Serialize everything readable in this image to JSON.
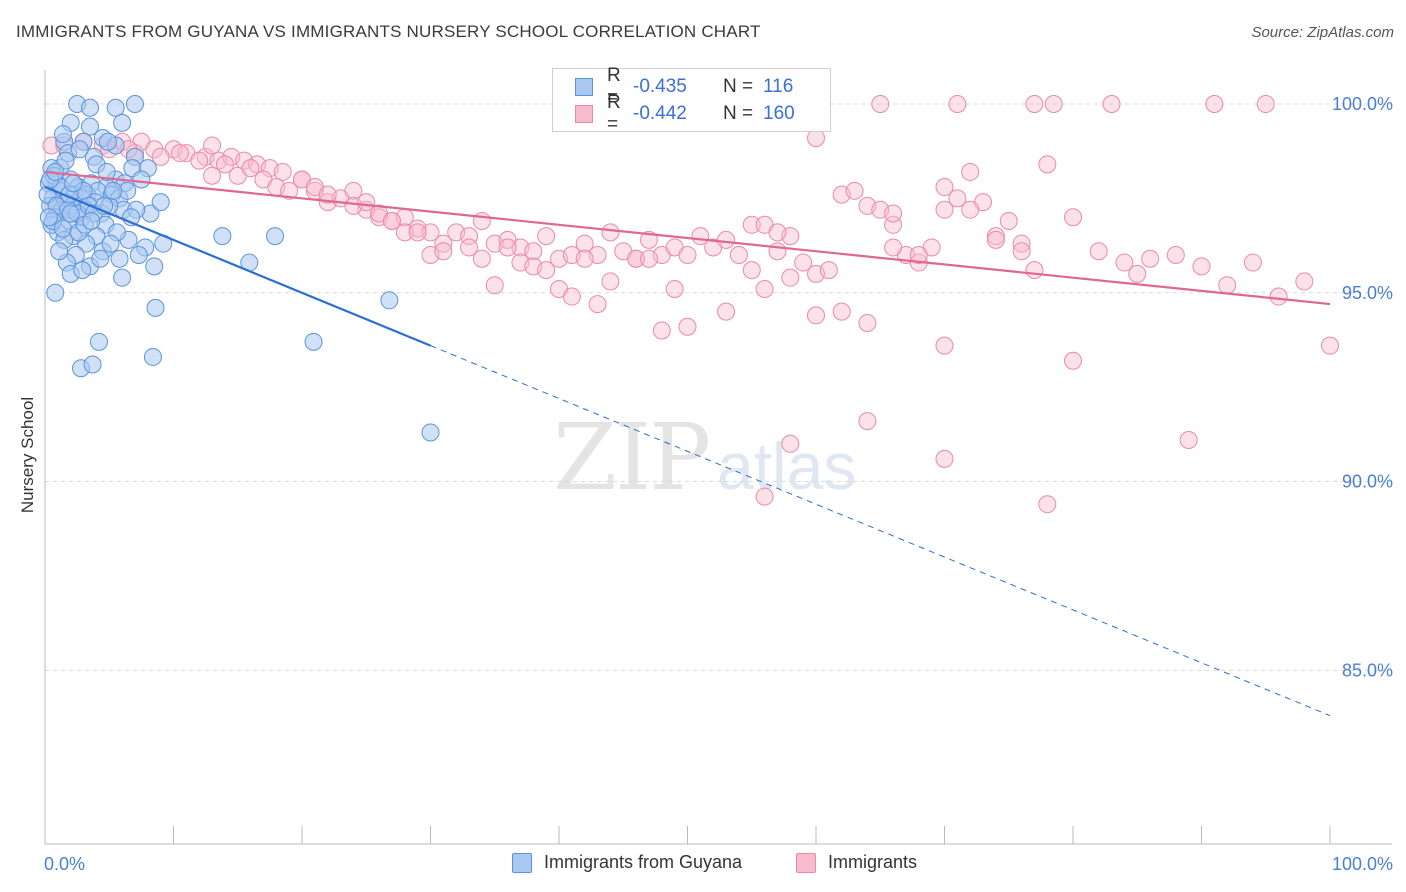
{
  "title": "IMMIGRANTS FROM GUYANA VS IMMIGRANTS NURSERY SCHOOL CORRELATION CHART",
  "source": "Source: ZipAtlas.com",
  "watermark": {
    "zip": "ZIP",
    "atlas": "atlas"
  },
  "legend": {
    "row1": {
      "r_label": "R =",
      "r_value": "-0.435",
      "n_label": "N =",
      "n_value": "116"
    },
    "row2": {
      "r_label": "R =",
      "r_value": "-0.442",
      "n_label": "N =",
      "n_value": "160"
    }
  },
  "bottom_legend": {
    "series1": "Immigrants from Guyana",
    "series2": "Immigrants"
  },
  "colors": {
    "blue_fill": "#a9c9f0",
    "blue_stroke": "#5b93dc",
    "blue_line": "#2a6fd1",
    "pink_fill": "#f6bccd",
    "pink_stroke": "#eb8aa8",
    "pink_line": "#e06890",
    "axis_label": "#4a7fd4",
    "grid": "#d9d9d9"
  },
  "chart_data": {
    "type": "scatter",
    "title": "IMMIGRANTS FROM GUYANA VS IMMIGRANTS NURSERY SCHOOL CORRELATION CHART",
    "xlabel": "",
    "ylabel": "Nursery School",
    "xlim": [
      0,
      100
    ],
    "ylim": [
      80.4,
      100.9
    ],
    "x_tick_labels": {
      "left": "0.0%",
      "right": "100.0%"
    },
    "y_ticks": [
      {
        "value": 100,
        "label": "100.0%"
      },
      {
        "value": 95,
        "label": "95.0%"
      },
      {
        "value": 90,
        "label": "90.0%"
      },
      {
        "value": 85,
        "label": "85.0%"
      }
    ],
    "series": [
      {
        "name": "Immigrants from Guyana",
        "r": -0.435,
        "n": 116,
        "trend": {
          "x0": 0,
          "y0": 97.8,
          "x1": 30,
          "y1": 93.6,
          "dash_to_x": 100,
          "dash_to_y": 83.8
        },
        "points": [
          [
            2.5,
            100
          ],
          [
            3.5,
            99.9
          ],
          [
            5.5,
            99.9
          ],
          [
            2,
            99.5
          ],
          [
            3.5,
            99.4
          ],
          [
            6,
            99.5
          ],
          [
            1.5,
            99.0
          ],
          [
            3,
            99.0
          ],
          [
            4.5,
            99.1
          ],
          [
            5.5,
            98.9
          ],
          [
            1.8,
            98.7
          ],
          [
            3.8,
            98.6
          ],
          [
            7,
            98.6
          ],
          [
            1.2,
            98.3
          ],
          [
            0.5,
            98.3
          ],
          [
            4,
            98.4
          ],
          [
            6.8,
            98.3
          ],
          [
            8,
            98.3
          ],
          [
            2,
            98.0
          ],
          [
            5.5,
            98.0
          ],
          [
            0.3,
            97.9
          ],
          [
            0.9,
            97.9
          ],
          [
            2.6,
            97.8
          ],
          [
            3.6,
            97.9
          ],
          [
            4.8,
            97.8
          ],
          [
            6.2,
            97.9
          ],
          [
            7.5,
            98.0
          ],
          [
            1.1,
            97.7
          ],
          [
            2.3,
            97.6
          ],
          [
            3.3,
            97.6
          ],
          [
            4.1,
            97.7
          ],
          [
            5.2,
            97.6
          ],
          [
            0.6,
            97.5
          ],
          [
            1.6,
            97.4
          ],
          [
            2.8,
            97.5
          ],
          [
            3.9,
            97.4
          ],
          [
            5.8,
            97.5
          ],
          [
            0.4,
            97.3
          ],
          [
            1.3,
            97.2
          ],
          [
            2.1,
            97.3
          ],
          [
            3.1,
            97.2
          ],
          [
            4.4,
            97.1
          ],
          [
            6.1,
            97.2
          ],
          [
            8.2,
            97.1
          ],
          [
            0.8,
            97.0
          ],
          [
            1.9,
            96.9
          ],
          [
            2.9,
            97.0
          ],
          [
            4.7,
            96.8
          ],
          [
            1.0,
            96.6
          ],
          [
            2.2,
            96.5
          ],
          [
            4.0,
            96.5
          ],
          [
            0.5,
            96.8
          ],
          [
            1.5,
            96.4
          ],
          [
            3.2,
            96.3
          ],
          [
            6.5,
            96.4
          ],
          [
            7.8,
            96.2
          ],
          [
            2.4,
            96.0
          ],
          [
            4.5,
            96.1
          ],
          [
            5.8,
            95.9
          ],
          [
            1.7,
            95.8
          ],
          [
            3.5,
            95.7
          ],
          [
            8.5,
            95.7
          ],
          [
            2.0,
            95.5
          ],
          [
            6.0,
            95.4
          ],
          [
            13.8,
            96.5
          ],
          [
            17.9,
            96.5
          ],
          [
            15.9,
            95.8
          ],
          [
            0.8,
            95.0
          ],
          [
            26.8,
            94.8
          ],
          [
            8.6,
            94.6
          ],
          [
            4.2,
            93.7
          ],
          [
            20.9,
            93.7
          ],
          [
            8.4,
            93.3
          ],
          [
            2.8,
            93.0
          ],
          [
            3.7,
            93.1
          ],
          [
            30.0,
            91.3
          ],
          [
            7.0,
            100
          ],
          [
            1.4,
            99.2
          ],
          [
            2.7,
            98.8
          ],
          [
            4.9,
            99.0
          ],
          [
            0.7,
            98.1
          ],
          [
            1.2,
            97.8
          ],
          [
            6.4,
            97.7
          ],
          [
            9.0,
            97.4
          ],
          [
            0.2,
            97.6
          ],
          [
            3.0,
            97.7
          ],
          [
            5.0,
            97.3
          ],
          [
            7.1,
            97.2
          ],
          [
            0.9,
            97.3
          ],
          [
            1.8,
            97.2
          ],
          [
            2.5,
            97.1
          ],
          [
            3.4,
            97.3
          ],
          [
            0.6,
            96.9
          ],
          [
            1.4,
            96.7
          ],
          [
            2.6,
            96.6
          ],
          [
            5.6,
            96.6
          ],
          [
            9.2,
            96.3
          ],
          [
            0.3,
            97.0
          ],
          [
            1.9,
            97.6
          ],
          [
            3.8,
            97.1
          ],
          [
            4.6,
            97.3
          ],
          [
            5.3,
            97.7
          ],
          [
            6.7,
            97.0
          ],
          [
            0.4,
            98.0
          ],
          [
            2.2,
            97.9
          ],
          [
            3.1,
            96.8
          ],
          [
            1.1,
            96.1
          ],
          [
            4.3,
            95.9
          ],
          [
            7.3,
            96.0
          ],
          [
            2.9,
            95.6
          ],
          [
            5.1,
            96.3
          ],
          [
            1.6,
            98.5
          ],
          [
            4.8,
            98.2
          ],
          [
            0.8,
            98.2
          ],
          [
            2.0,
            97.1
          ],
          [
            3.6,
            96.9
          ]
        ]
      },
      {
        "name": "Immigrants",
        "r": -0.442,
        "n": 160,
        "trend": {
          "x0": 0,
          "y0": 98.2,
          "x1": 100,
          "y1": 94.7
        },
        "points": [
          [
            0.5,
            98.9
          ],
          [
            1.5,
            98.9
          ],
          [
            3,
            99.0
          ],
          [
            4.5,
            98.9
          ],
          [
            6,
            99.0
          ],
          [
            7.5,
            99.0
          ],
          [
            8.5,
            98.8
          ],
          [
            10,
            98.8
          ],
          [
            11,
            98.7
          ],
          [
            12.5,
            98.6
          ],
          [
            13.5,
            98.5
          ],
          [
            14.5,
            98.6
          ],
          [
            15.5,
            98.5
          ],
          [
            16.5,
            98.4
          ],
          [
            17.5,
            98.3
          ],
          [
            18.5,
            98.2
          ],
          [
            5,
            98.8
          ],
          [
            7,
            98.7
          ],
          [
            9,
            98.6
          ],
          [
            10.5,
            98.7
          ],
          [
            12,
            98.5
          ],
          [
            14,
            98.4
          ],
          [
            13,
            98.1
          ],
          [
            15,
            98.1
          ],
          [
            16,
            98.3
          ],
          [
            17,
            98.0
          ],
          [
            18,
            97.8
          ],
          [
            19,
            97.7
          ],
          [
            20,
            98.0
          ],
          [
            21,
            97.7
          ],
          [
            22,
            97.4
          ],
          [
            23,
            97.5
          ],
          [
            24,
            97.7
          ],
          [
            25,
            97.2
          ],
          [
            26,
            97.0
          ],
          [
            27,
            96.9
          ],
          [
            28,
            97.0
          ],
          [
            29,
            96.7
          ],
          [
            30,
            96.6
          ],
          [
            31,
            96.3
          ],
          [
            32,
            96.6
          ],
          [
            33,
            96.5
          ],
          [
            34,
            96.9
          ],
          [
            35,
            96.3
          ],
          [
            36,
            96.4
          ],
          [
            37,
            96.2
          ],
          [
            38,
            96.1
          ],
          [
            39,
            96.5
          ],
          [
            40,
            95.9
          ],
          [
            41,
            96.0
          ],
          [
            42,
            96.3
          ],
          [
            43,
            96.0
          ],
          [
            44,
            96.6
          ],
          [
            45,
            96.1
          ],
          [
            46,
            95.9
          ],
          [
            47,
            96.4
          ],
          [
            48,
            96.0
          ],
          [
            49,
            96.2
          ],
          [
            50,
            96.0
          ],
          [
            51,
            96.5
          ],
          [
            52,
            96.2
          ],
          [
            53,
            96.4
          ],
          [
            54,
            96.0
          ],
          [
            55,
            96.8
          ],
          [
            56,
            96.8
          ],
          [
            57,
            96.1
          ],
          [
            58,
            96.5
          ],
          [
            59,
            95.8
          ],
          [
            60,
            95.5
          ],
          [
            61,
            95.6
          ],
          [
            62,
            97.6
          ],
          [
            63,
            97.7
          ],
          [
            64,
            97.3
          ],
          [
            65,
            97.2
          ],
          [
            66,
            96.8
          ],
          [
            67,
            96.0
          ],
          [
            68,
            95.8
          ],
          [
            69,
            96.2
          ],
          [
            70,
            97.2
          ],
          [
            71,
            97.5
          ],
          [
            72,
            98.2
          ],
          [
            73,
            97.4
          ],
          [
            74,
            96.5
          ],
          [
            75,
            96.9
          ],
          [
            76,
            96.3
          ],
          [
            77,
            95.6
          ],
          [
            20,
            98.0
          ],
          [
            21,
            97.8
          ],
          [
            22,
            97.6
          ],
          [
            24,
            97.3
          ],
          [
            25,
            97.4
          ],
          [
            26,
            97.1
          ],
          [
            27,
            96.9
          ],
          [
            28,
            96.6
          ],
          [
            29,
            96.6
          ],
          [
            30,
            96.0
          ],
          [
            31,
            96.1
          ],
          [
            33,
            96.2
          ],
          [
            34,
            95.9
          ],
          [
            36,
            96.2
          ],
          [
            37,
            95.8
          ],
          [
            38,
            95.7
          ],
          [
            39,
            95.6
          ],
          [
            40,
            95.1
          ],
          [
            41,
            94.9
          ],
          [
            42,
            95.9
          ],
          [
            43,
            94.7
          ],
          [
            44,
            95.3
          ],
          [
            46,
            95.9
          ],
          [
            47,
            95.9
          ],
          [
            49,
            95.1
          ],
          [
            50,
            94.1
          ],
          [
            53,
            94.5
          ],
          [
            55,
            95.6
          ],
          [
            56,
            95.1
          ],
          [
            58,
            95.4
          ],
          [
            60,
            94.4
          ],
          [
            62,
            94.5
          ],
          [
            64,
            94.2
          ],
          [
            66,
            96.2
          ],
          [
            68,
            96.0
          ],
          [
            70,
            97.8
          ],
          [
            72,
            97.2
          ],
          [
            74,
            96.4
          ],
          [
            76,
            96.1
          ],
          [
            78,
            98.4
          ],
          [
            80,
            97.0
          ],
          [
            82,
            96.1
          ],
          [
            84,
            95.8
          ],
          [
            85,
            95.5
          ],
          [
            86,
            95.9
          ],
          [
            88,
            96.0
          ],
          [
            90,
            95.7
          ],
          [
            92,
            95.2
          ],
          [
            94,
            95.8
          ],
          [
            96,
            94.9
          ],
          [
            98,
            95.3
          ],
          [
            100,
            93.6
          ],
          [
            70,
            93.6
          ],
          [
            80,
            93.2
          ],
          [
            64,
            91.6
          ],
          [
            58,
            91.0
          ],
          [
            70,
            90.6
          ],
          [
            89,
            91.1
          ],
          [
            56,
            89.6
          ],
          [
            78,
            89.4
          ],
          [
            65,
            100
          ],
          [
            71,
            100
          ],
          [
            77,
            100
          ],
          [
            78.5,
            100
          ],
          [
            83,
            100
          ],
          [
            91,
            100
          ],
          [
            95,
            100
          ],
          [
            60,
            99.1
          ],
          [
            13,
            98.9
          ],
          [
            6.5,
            98.8
          ],
          [
            35,
            95.2
          ],
          [
            48,
            94.0
          ],
          [
            57,
            96.6
          ],
          [
            66,
            97.1
          ]
        ]
      }
    ]
  }
}
